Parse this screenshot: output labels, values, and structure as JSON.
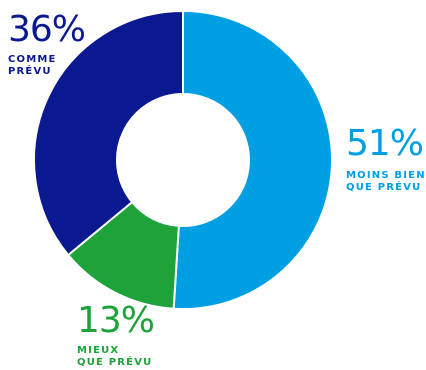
{
  "chart_data": {
    "type": "pie",
    "donut": true,
    "title": "",
    "start": "top",
    "direction": "clockwise",
    "slices": [
      {
        "value": 51,
        "percent_label": "51%",
        "label_lines": [
          "MOINS BIEN",
          "QUE PRÉVU"
        ],
        "color": "#009fe3"
      },
      {
        "value": 13,
        "percent_label": "13%",
        "label_lines": [
          "MIEUX",
          "QUE PRÉVU"
        ],
        "color": "#1ea23a"
      },
      {
        "value": 36,
        "percent_label": "36%",
        "label_lines": [
          "COMME",
          "PRÉVU"
        ],
        "color": "#0a1990"
      }
    ],
    "background": "#ffffff"
  }
}
